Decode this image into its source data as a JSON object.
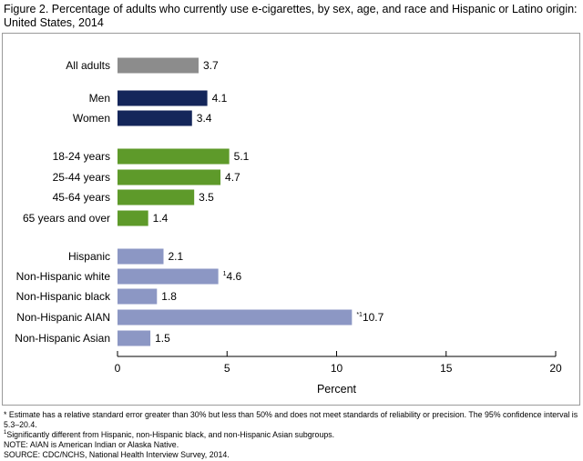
{
  "title": "Figure 2. Percentage of adults who currently use e-cigarettes, by sex, age, and race and Hispanic or Latino origin: United States, 2014",
  "colors": {
    "all": "#8c8c8c",
    "sex": "#14265a",
    "age": "#5e9a2a",
    "race": "#8c97c4"
  },
  "chart_data": {
    "type": "bar",
    "orientation": "horizontal",
    "categories": [
      "All adults",
      "Men",
      "Women",
      "18-24 years",
      "25-44 years",
      "45-64 years",
      "65 years and over",
      "Hispanic",
      "Non-Hispanic white",
      "Non-Hispanic black",
      "Non-Hispanic AIAN",
      "Non-Hispanic Asian"
    ],
    "groups": [
      "all",
      "sex",
      "sex",
      "age",
      "age",
      "age",
      "age",
      "race",
      "race",
      "race",
      "race",
      "race"
    ],
    "values": [
      3.7,
      4.1,
      3.4,
      5.1,
      4.7,
      3.5,
      1.4,
      2.1,
      4.6,
      1.8,
      10.7,
      1.5
    ],
    "value_labels": [
      "3.7",
      "4.1",
      "3.4",
      "5.1",
      "4.7",
      "3.5",
      "1.4",
      "2.1",
      "4.6",
      "1.8",
      "10.7",
      "1.5"
    ],
    "value_markers": [
      "",
      "",
      "",
      "",
      "",
      "",
      "",
      "",
      "1",
      "",
      "*1",
      ""
    ],
    "xlabel": "Percent",
    "ylabel": "",
    "xlim": [
      0,
      20
    ],
    "xticks": [
      0,
      5,
      10,
      15,
      20
    ],
    "grid": false,
    "legend": "none"
  },
  "notes": {
    "estimate_line1": "* Estimate has a relative standard error greater than 30% but less than 50% and does not meet standards of reliability or precision. The 95% confidence interval is",
    "estimate_line2": "5.3–20.4.",
    "significance_mark": "1",
    "significance_text": "Significantly different from Hispanic, non-Hispanic black, and non-Hispanic Asian subgroups.",
    "note": "NOTE: AIAN is American Indian or Alaska Native.",
    "source": "SOURCE: CDC/NCHS, National Health Interview Survey, 2014."
  }
}
